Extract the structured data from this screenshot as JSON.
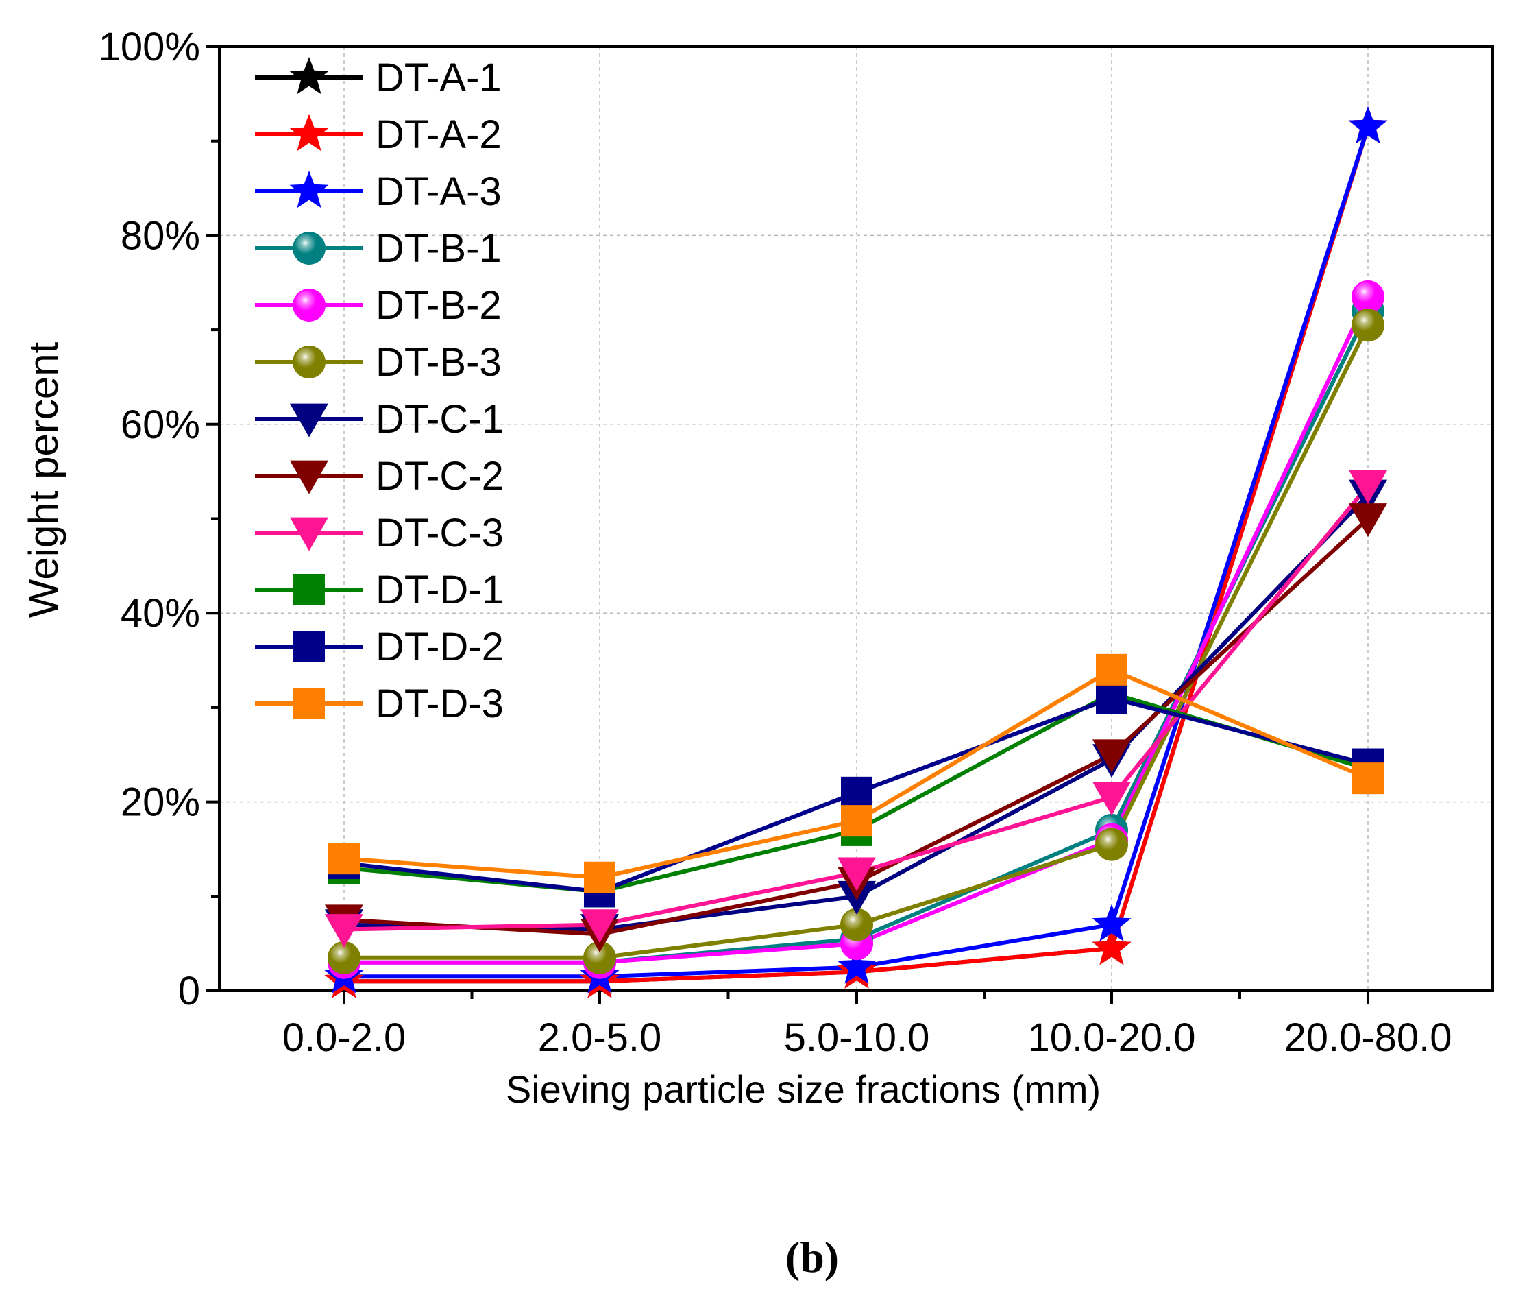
{
  "chart_data": {
    "type": "line",
    "title": "",
    "xlabel": "Sieving particle size fractions (mm)",
    "ylabel": "Weight percent",
    "categories": [
      "0.0-2.0",
      "2.0-5.0",
      "5.0-10.0",
      "10.0-20.0",
      "20.0-80.0"
    ],
    "ylim": [
      0,
      100
    ],
    "yticks": [
      0,
      20,
      40,
      60,
      80,
      100
    ],
    "ytick_labels": [
      "0",
      "20%",
      "40%",
      "60%",
      "80%",
      "100%"
    ],
    "grid": true,
    "legend_position": "top-left",
    "panel_label": "(b)",
    "series": [
      {
        "name": "DT-A-1",
        "color": "#000000",
        "marker": "star",
        "values": [
          1.0,
          1.0,
          2.0,
          4.5,
          91.5
        ]
      },
      {
        "name": "DT-A-2",
        "color": "#ff0000",
        "marker": "star",
        "values": [
          1.0,
          1.0,
          2.0,
          4.5,
          91.5
        ]
      },
      {
        "name": "DT-A-3",
        "color": "#0000ff",
        "marker": "star",
        "values": [
          1.5,
          1.5,
          2.5,
          7.0,
          91.5
        ]
      },
      {
        "name": "DT-B-1",
        "color": "#008080",
        "marker": "circle",
        "values": [
          3.0,
          3.0,
          5.5,
          17.0,
          72.0
        ]
      },
      {
        "name": "DT-B-2",
        "color": "#ff00ff",
        "marker": "circle",
        "values": [
          3.0,
          3.0,
          5.0,
          16.0,
          73.5
        ]
      },
      {
        "name": "DT-B-3",
        "color": "#808000",
        "marker": "circle",
        "values": [
          3.5,
          3.5,
          7.0,
          15.5,
          70.5
        ]
      },
      {
        "name": "DT-C-1",
        "color": "#000080",
        "marker": "triangle-down",
        "values": [
          7.0,
          6.5,
          10.0,
          24.5,
          52.5
        ]
      },
      {
        "name": "DT-C-2",
        "color": "#800000",
        "marker": "triangle-down",
        "values": [
          7.5,
          6.0,
          11.5,
          25.0,
          50.0
        ]
      },
      {
        "name": "DT-C-3",
        "color": "#ff1493",
        "marker": "triangle-down",
        "values": [
          6.5,
          7.0,
          12.5,
          20.5,
          53.5
        ]
      },
      {
        "name": "DT-D-1",
        "color": "#008000",
        "marker": "square",
        "values": [
          13.0,
          10.5,
          17.0,
          31.5,
          23.5
        ]
      },
      {
        "name": "DT-D-2",
        "color": "#00008b",
        "marker": "square",
        "values": [
          13.5,
          10.5,
          21.0,
          31.0,
          24.0
        ]
      },
      {
        "name": "DT-D-3",
        "color": "#ff8000",
        "marker": "square",
        "values": [
          14.0,
          12.0,
          18.0,
          34.0,
          22.5
        ]
      }
    ]
  }
}
